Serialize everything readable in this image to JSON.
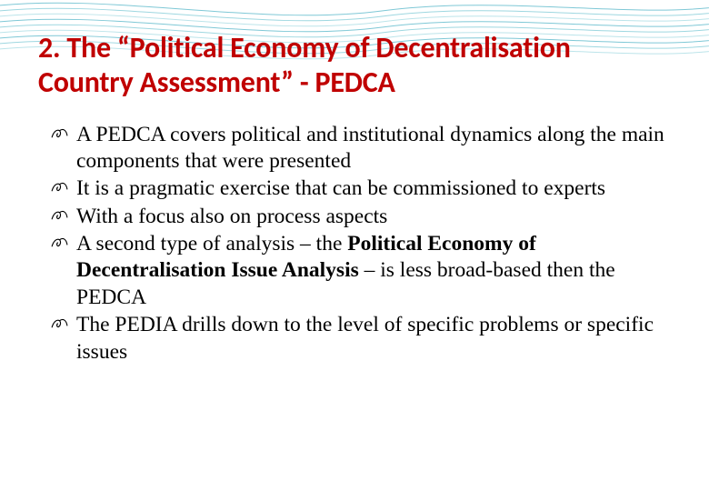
{
  "slide": {
    "title": "2. The “Political Economy of Decentralisation Country Assessment” - PEDCA",
    "title_color": "#c00000",
    "title_fontsize": 32,
    "body_fontsize": 23.5,
    "body_color": "#000000",
    "background_color": "#ffffff",
    "bullet_glyph": "script-flourish",
    "bullets": [
      {
        "runs": [
          {
            "text": "A PEDCA covers political and institutional dynamics along the main components that were presented",
            "bold": false
          }
        ]
      },
      {
        "runs": [
          {
            "text": "It is a pragmatic exercise that can be commissioned to experts",
            "bold": false
          }
        ]
      },
      {
        "runs": [
          {
            "text": "With a focus also on process aspects",
            "bold": false
          }
        ]
      },
      {
        "runs": [
          {
            "text": "A second type of analysis – the ",
            "bold": false
          },
          {
            "text": "Political Economy of Decentralisation Issue Analysis",
            "bold": true
          },
          {
            "text": " – is less broad-based then the PEDCA",
            "bold": false
          }
        ]
      },
      {
        "runs": [
          {
            "text": "The PEDIA drills down to the level of specific problems or specific issues",
            "bold": false
          }
        ]
      }
    ]
  },
  "decorative_waves": {
    "stroke_color_1": "#7fc8d6",
    "stroke_color_2": "#9ed7e0",
    "stroke_color_3": "#bce4ea",
    "stroke_width": 1,
    "count_approx": 10
  }
}
